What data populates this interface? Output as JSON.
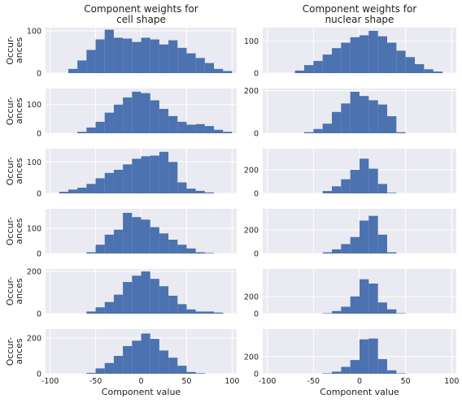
{
  "figure": {
    "titles": [
      "Component weights for\ncell shape",
      "Component weights for\nnuclear shape"
    ],
    "ylabel": "Occur-\nances",
    "xlabel": "Component value"
  },
  "colors": {
    "bar": "#4c72b0",
    "panel": "#eaeaf2",
    "grid": "#ffffff"
  },
  "chart_data": {
    "type": "bar",
    "grid": true,
    "xlim": [
      -105,
      105
    ],
    "xticks": [
      -100,
      -50,
      0,
      50,
      100
    ],
    "bin_width": 10,
    "panels": [
      {
        "row": 0,
        "col": 0,
        "ylim": [
          0,
          108
        ],
        "yticks": [
          0,
          100
        ],
        "bins": [
          -80,
          -70,
          -60,
          -50,
          -40,
          -30,
          -20,
          -10,
          0,
          10,
          20,
          30,
          40,
          50,
          60,
          70,
          80,
          90
        ],
        "values": [
          10,
          30,
          55,
          80,
          103,
          84,
          82,
          74,
          84,
          80,
          68,
          78,
          60,
          47,
          36,
          24,
          10,
          5
        ]
      },
      {
        "row": 0,
        "col": 1,
        "ylim": [
          0,
          142
        ],
        "yticks": [
          0,
          100
        ],
        "bins": [
          -70,
          -60,
          -50,
          -40,
          -30,
          -20,
          -10,
          0,
          10,
          20,
          30,
          40,
          50,
          60,
          70,
          80
        ],
        "values": [
          8,
          25,
          38,
          58,
          78,
          95,
          112,
          118,
          132,
          115,
          95,
          70,
          50,
          28,
          12,
          5
        ]
      },
      {
        "row": 1,
        "col": 0,
        "ylim": [
          0,
          156
        ],
        "yticks": [
          0,
          100
        ],
        "bins": [
          -70,
          -60,
          -50,
          -40,
          -30,
          -20,
          -10,
          0,
          10,
          20,
          30,
          40,
          50,
          60,
          70,
          80,
          90
        ],
        "values": [
          5,
          20,
          40,
          72,
          100,
          125,
          145,
          140,
          115,
          85,
          60,
          40,
          30,
          32,
          25,
          12,
          5
        ]
      },
      {
        "row": 1,
        "col": 1,
        "ylim": [
          0,
          210
        ],
        "yticks": [
          0,
          200
        ],
        "bins": [
          -60,
          -50,
          -40,
          -30,
          -20,
          -10,
          0,
          10,
          20,
          30,
          40
        ],
        "values": [
          5,
          20,
          45,
          100,
          140,
          195,
          175,
          155,
          135,
          80,
          5
        ]
      },
      {
        "row": 2,
        "col": 0,
        "ylim": [
          0,
          142
        ],
        "yticks": [
          0,
          100
        ],
        "bins": [
          -90,
          -80,
          -70,
          -60,
          -50,
          -40,
          -30,
          -20,
          -10,
          0,
          10,
          20,
          30,
          40,
          50,
          60,
          70
        ],
        "values": [
          5,
          12,
          18,
          30,
          48,
          65,
          75,
          92,
          110,
          118,
          120,
          132,
          100,
          35,
          15,
          8,
          3
        ]
      },
      {
        "row": 2,
        "col": 1,
        "ylim": [
          0,
          380
        ],
        "yticks": [
          0,
          200
        ],
        "bins": [
          -40,
          -30,
          -20,
          -10,
          0,
          10,
          20,
          30
        ],
        "values": [
          20,
          60,
          120,
          200,
          295,
          210,
          80,
          5
        ]
      },
      {
        "row": 3,
        "col": 0,
        "ylim": [
          0,
          178
        ],
        "yticks": [
          0,
          100
        ],
        "bins": [
          -60,
          -50,
          -40,
          -30,
          -20,
          -10,
          0,
          10,
          20,
          30,
          40,
          50,
          60,
          70
        ],
        "values": [
          5,
          35,
          75,
          95,
          162,
          145,
          135,
          105,
          80,
          55,
          35,
          20,
          5,
          2
        ]
      },
      {
        "row": 3,
        "col": 1,
        "ylim": [
          0,
          380
        ],
        "yticks": [
          0,
          200
        ],
        "bins": [
          -40,
          -30,
          -20,
          -10,
          0,
          10,
          20,
          30
        ],
        "values": [
          10,
          35,
          80,
          140,
          280,
          320,
          160,
          10
        ]
      },
      {
        "row": 4,
        "col": 0,
        "ylim": [
          0,
          212
        ],
        "yticks": [
          0,
          200
        ],
        "bins": [
          -60,
          -50,
          -40,
          -30,
          -20,
          -10,
          0,
          10,
          20,
          30,
          40,
          50,
          60,
          70,
          80
        ],
        "values": [
          10,
          30,
          55,
          90,
          150,
          180,
          200,
          165,
          130,
          85,
          45,
          20,
          10,
          10,
          5
        ]
      },
      {
        "row": 4,
        "col": 1,
        "ylim": [
          0,
          520
        ],
        "yticks": [
          0,
          200
        ],
        "bins": [
          -40,
          -30,
          -20,
          -10,
          0,
          10,
          20,
          30,
          40
        ],
        "values": [
          5,
          30,
          80,
          200,
          400,
          350,
          130,
          50,
          5
        ]
      },
      {
        "row": 5,
        "col": 0,
        "ylim": [
          0,
          250
        ],
        "yticks": [
          0,
          200
        ],
        "bins": [
          -60,
          -50,
          -40,
          -30,
          -20,
          -10,
          0,
          10,
          20,
          30,
          40,
          50,
          60
        ],
        "values": [
          5,
          30,
          60,
          100,
          155,
          185,
          225,
          195,
          130,
          90,
          45,
          10,
          3
        ]
      },
      {
        "row": 5,
        "col": 1,
        "ylim": [
          0,
          520
        ],
        "yticks": [
          0,
          200
        ],
        "bins": [
          -40,
          -30,
          -20,
          -10,
          0,
          10,
          20,
          30,
          40
        ],
        "values": [
          5,
          25,
          80,
          160,
          400,
          410,
          170,
          40,
          5
        ]
      }
    ]
  }
}
